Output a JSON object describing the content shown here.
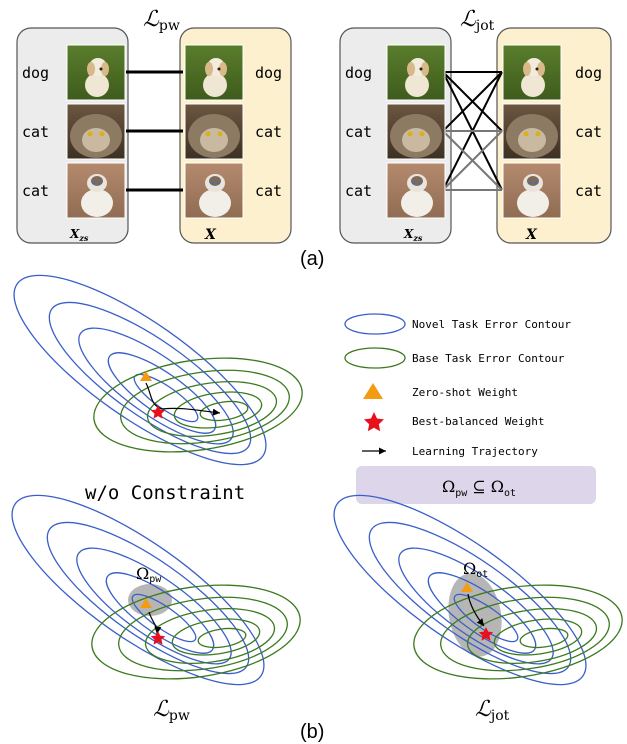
{
  "panel_a": {
    "left_title_main": "ℒ",
    "left_title_sub": "pw",
    "right_title_main": "ℒ",
    "right_title_sub": "jot",
    "rows": [
      {
        "label": "dog",
        "animal": "dog"
      },
      {
        "label": "cat",
        "animal": "cat-tabby"
      },
      {
        "label": "cat",
        "animal": "cat-ragdoll"
      }
    ],
    "zs_main": "X",
    "zs_sub": "zs",
    "target_label": "X",
    "caption": "(a)"
  },
  "panel_b": {
    "legend": {
      "novel": "Novel Task Error Contour",
      "base": "Base Task Error Contour",
      "zero_shot": "Zero-shot Weight",
      "best": "Best-balanced Weight",
      "trajectory": "Learning Trajectory",
      "relation_a": "Ω",
      "relation_a_sub": "pw",
      "relation_op": "⊆",
      "relation_b": "Ω",
      "relation_b_sub": "ot"
    },
    "top_caption": "w/o Constraint",
    "bl_region": "Ω",
    "bl_region_sub": "pw",
    "br_region": "Ω",
    "br_region_sub": "ot",
    "bl_caption_main": "ℒ",
    "bl_caption_sub": "pw",
    "br_caption_main": "ℒ",
    "br_caption_sub": "jot",
    "caption": "(b)"
  },
  "colors": {
    "novel": "#3a5fc9",
    "base": "#3b7a1e",
    "zero_shot": "#f39c12",
    "best": "#e8101a",
    "left_panel_bg": "#ececec",
    "right_panel_bg": "#fdf0cf",
    "constraint_bg": "#ddd6ea",
    "region_gray": "#a9a9a9"
  }
}
